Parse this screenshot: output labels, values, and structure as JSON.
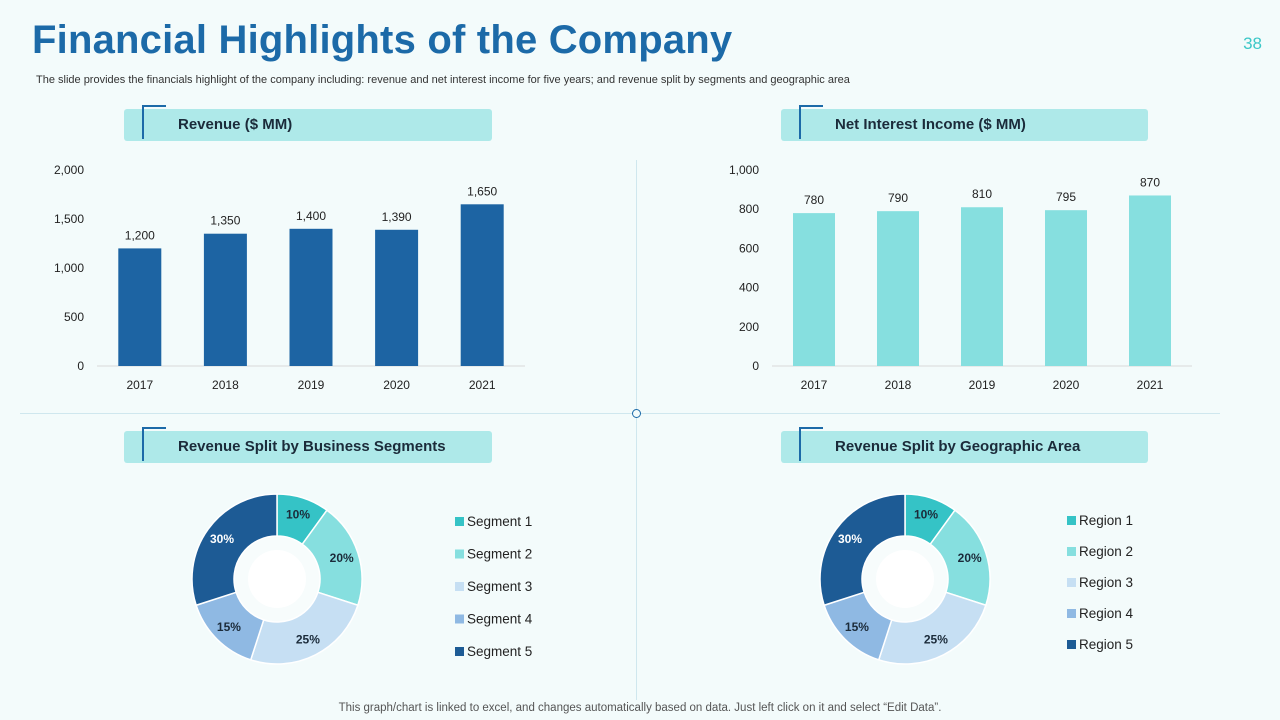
{
  "page": {
    "title": "Financial Highlights of the Company",
    "page_number": "38",
    "subtitle": "The slide provides the financials highlight of the company including: revenue and net interest income for five years; and revenue split by segments and geographic area",
    "footer": "This graph/chart is linked to excel,  and changes automatically based on data. Just left click on it and select “Edit Data”."
  },
  "colors": {
    "revenue_bar": "#1d64a3",
    "nii_bar": "#86dfdf",
    "segments": [
      "#35c3c6",
      "#86dfdf",
      "#c6dff3",
      "#8fb9e3",
      "#1d5b95"
    ]
  },
  "chart_data": [
    {
      "id": "revenue",
      "type": "bar",
      "title": "Revenue ($ MM)",
      "categories": [
        "2017",
        "2018",
        "2019",
        "2020",
        "2021"
      ],
      "values": [
        1200,
        1350,
        1400,
        1390,
        1650
      ],
      "value_labels": [
        "1,200",
        "1,350",
        "1,400",
        "1,390",
        "1,650"
      ],
      "ylim": [
        0,
        2000
      ],
      "yticks": [
        0,
        500,
        1000,
        1500,
        2000
      ],
      "ytick_labels": [
        "0",
        "500",
        "1,000",
        "1,500",
        "2,000"
      ]
    },
    {
      "id": "nii",
      "type": "bar",
      "title": "Net Interest Income ($ MM)",
      "categories": [
        "2017",
        "2018",
        "2019",
        "2020",
        "2021"
      ],
      "values": [
        780,
        790,
        810,
        795,
        870
      ],
      "value_labels": [
        "780",
        "790",
        "810",
        "795",
        "870"
      ],
      "ylim": [
        0,
        1000
      ],
      "yticks": [
        0,
        200,
        400,
        600,
        800,
        1000
      ],
      "ytick_labels": [
        "0",
        "200",
        "400",
        "600",
        "800",
        "1,000"
      ]
    },
    {
      "id": "segments",
      "type": "pie",
      "title": "Revenue Split by Business Segments",
      "labels": [
        "Segment 1",
        "Segment 2",
        "Segment 3",
        "Segment 4",
        "Segment 5"
      ],
      "values": [
        10,
        20,
        25,
        15,
        30
      ],
      "value_labels": [
        "10%",
        "20%",
        "25%",
        "15%",
        "30%"
      ]
    },
    {
      "id": "regions",
      "type": "pie",
      "title": "Revenue Split by Geographic Area",
      "labels": [
        "Region 1",
        "Region 2",
        "Region 3",
        "Region 4",
        "Region 5"
      ],
      "values": [
        10,
        20,
        25,
        15,
        30
      ],
      "value_labels": [
        "10%",
        "20%",
        "25%",
        "15%",
        "30%"
      ]
    }
  ]
}
